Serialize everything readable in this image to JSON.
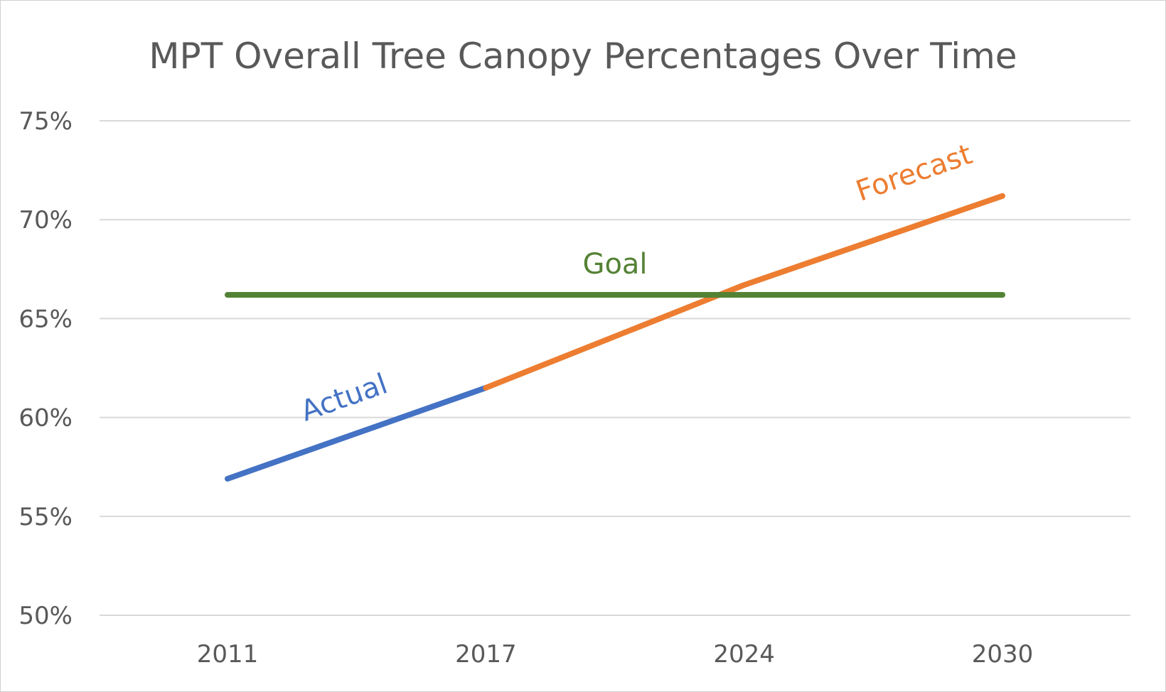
{
  "chart_data": {
    "type": "line",
    "title": "MPT Overall Tree Canopy Percentages Over Time",
    "xlabel": "",
    "ylabel": "",
    "categories": [
      "2011",
      "2017",
      "2024",
      "2030"
    ],
    "y_ticks": [
      "50%",
      "55%",
      "60%",
      "65%",
      "70%",
      "75%"
    ],
    "ylim": [
      50,
      75
    ],
    "grid": "horizontal",
    "legend": "none",
    "series": [
      {
        "name": "Actual",
        "color": "#4472C4",
        "values": [
          56.9,
          61.5,
          null,
          null
        ]
      },
      {
        "name": "Forecast",
        "color": "#ED7D31",
        "values": [
          null,
          61.5,
          66.7,
          71.2
        ]
      },
      {
        "name": "Goal",
        "color": "#548235",
        "values": [
          66.2,
          66.2,
          66.2,
          66.2
        ]
      }
    ],
    "annotations": [
      {
        "text": "Actual",
        "series": "Actual",
        "color": "#4472C4"
      },
      {
        "text": "Forecast",
        "series": "Forecast",
        "color": "#ED7D31"
      },
      {
        "text": "Goal",
        "series": "Goal",
        "color": "#548235"
      }
    ]
  }
}
